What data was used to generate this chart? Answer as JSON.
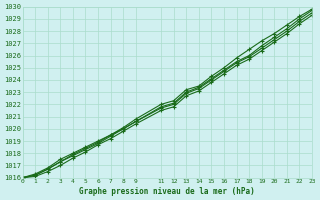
{
  "title": "Graphe pression niveau de la mer (hPa)",
  "bg_color": "#d0f0f0",
  "grid_color": "#aaddcc",
  "line_color": "#1a6b1a",
  "marker_color": "#1a6b1a",
  "x_ticks": [
    0,
    1,
    2,
    3,
    4,
    5,
    6,
    7,
    8,
    9,
    11,
    12,
    13,
    14,
    15,
    16,
    17,
    18,
    19,
    20,
    21,
    22,
    23
  ],
  "ylim": [
    1016,
    1030
  ],
  "xlim": [
    0,
    23
  ],
  "series": [
    [
      1016.0,
      1016.3,
      1016.8,
      1017.5,
      1018.0,
      1018.5,
      1019.0,
      1019.5,
      1020.1,
      1020.8,
      1022.0,
      1022.3,
      1023.2,
      1023.5,
      1024.3,
      1025.0,
      1025.8,
      1026.5,
      1027.2,
      1027.8,
      1028.5,
      1029.2,
      1029.8
    ],
    [
      1016.0,
      1016.2,
      1016.7,
      1017.3,
      1017.9,
      1018.4,
      1018.9,
      1019.5,
      1020.0,
      1020.6,
      1021.8,
      1022.1,
      1023.0,
      1023.4,
      1024.1,
      1024.8,
      1025.5,
      1026.0,
      1026.8,
      1027.5,
      1028.2,
      1029.0,
      1029.7
    ],
    [
      1016.0,
      1016.2,
      1016.7,
      1017.3,
      1017.8,
      1018.3,
      1018.8,
      1019.4,
      1020.0,
      1020.6,
      1021.7,
      1022.0,
      1022.9,
      1023.3,
      1024.0,
      1024.7,
      1025.4,
      1025.9,
      1026.6,
      1027.3,
      1028.0,
      1028.8,
      1029.5
    ],
    [
      1016.0,
      1016.1,
      1016.5,
      1017.0,
      1017.6,
      1018.1,
      1018.7,
      1019.2,
      1019.8,
      1020.4,
      1021.5,
      1021.8,
      1022.7,
      1023.1,
      1023.8,
      1024.5,
      1025.2,
      1025.7,
      1026.4,
      1027.1,
      1027.8,
      1028.6,
      1029.3
    ]
  ],
  "x_positions": [
    0,
    1,
    2,
    3,
    4,
    5,
    6,
    7,
    8,
    9,
    11,
    12,
    13,
    14,
    15,
    16,
    17,
    18,
    19,
    20,
    21,
    22,
    23
  ]
}
